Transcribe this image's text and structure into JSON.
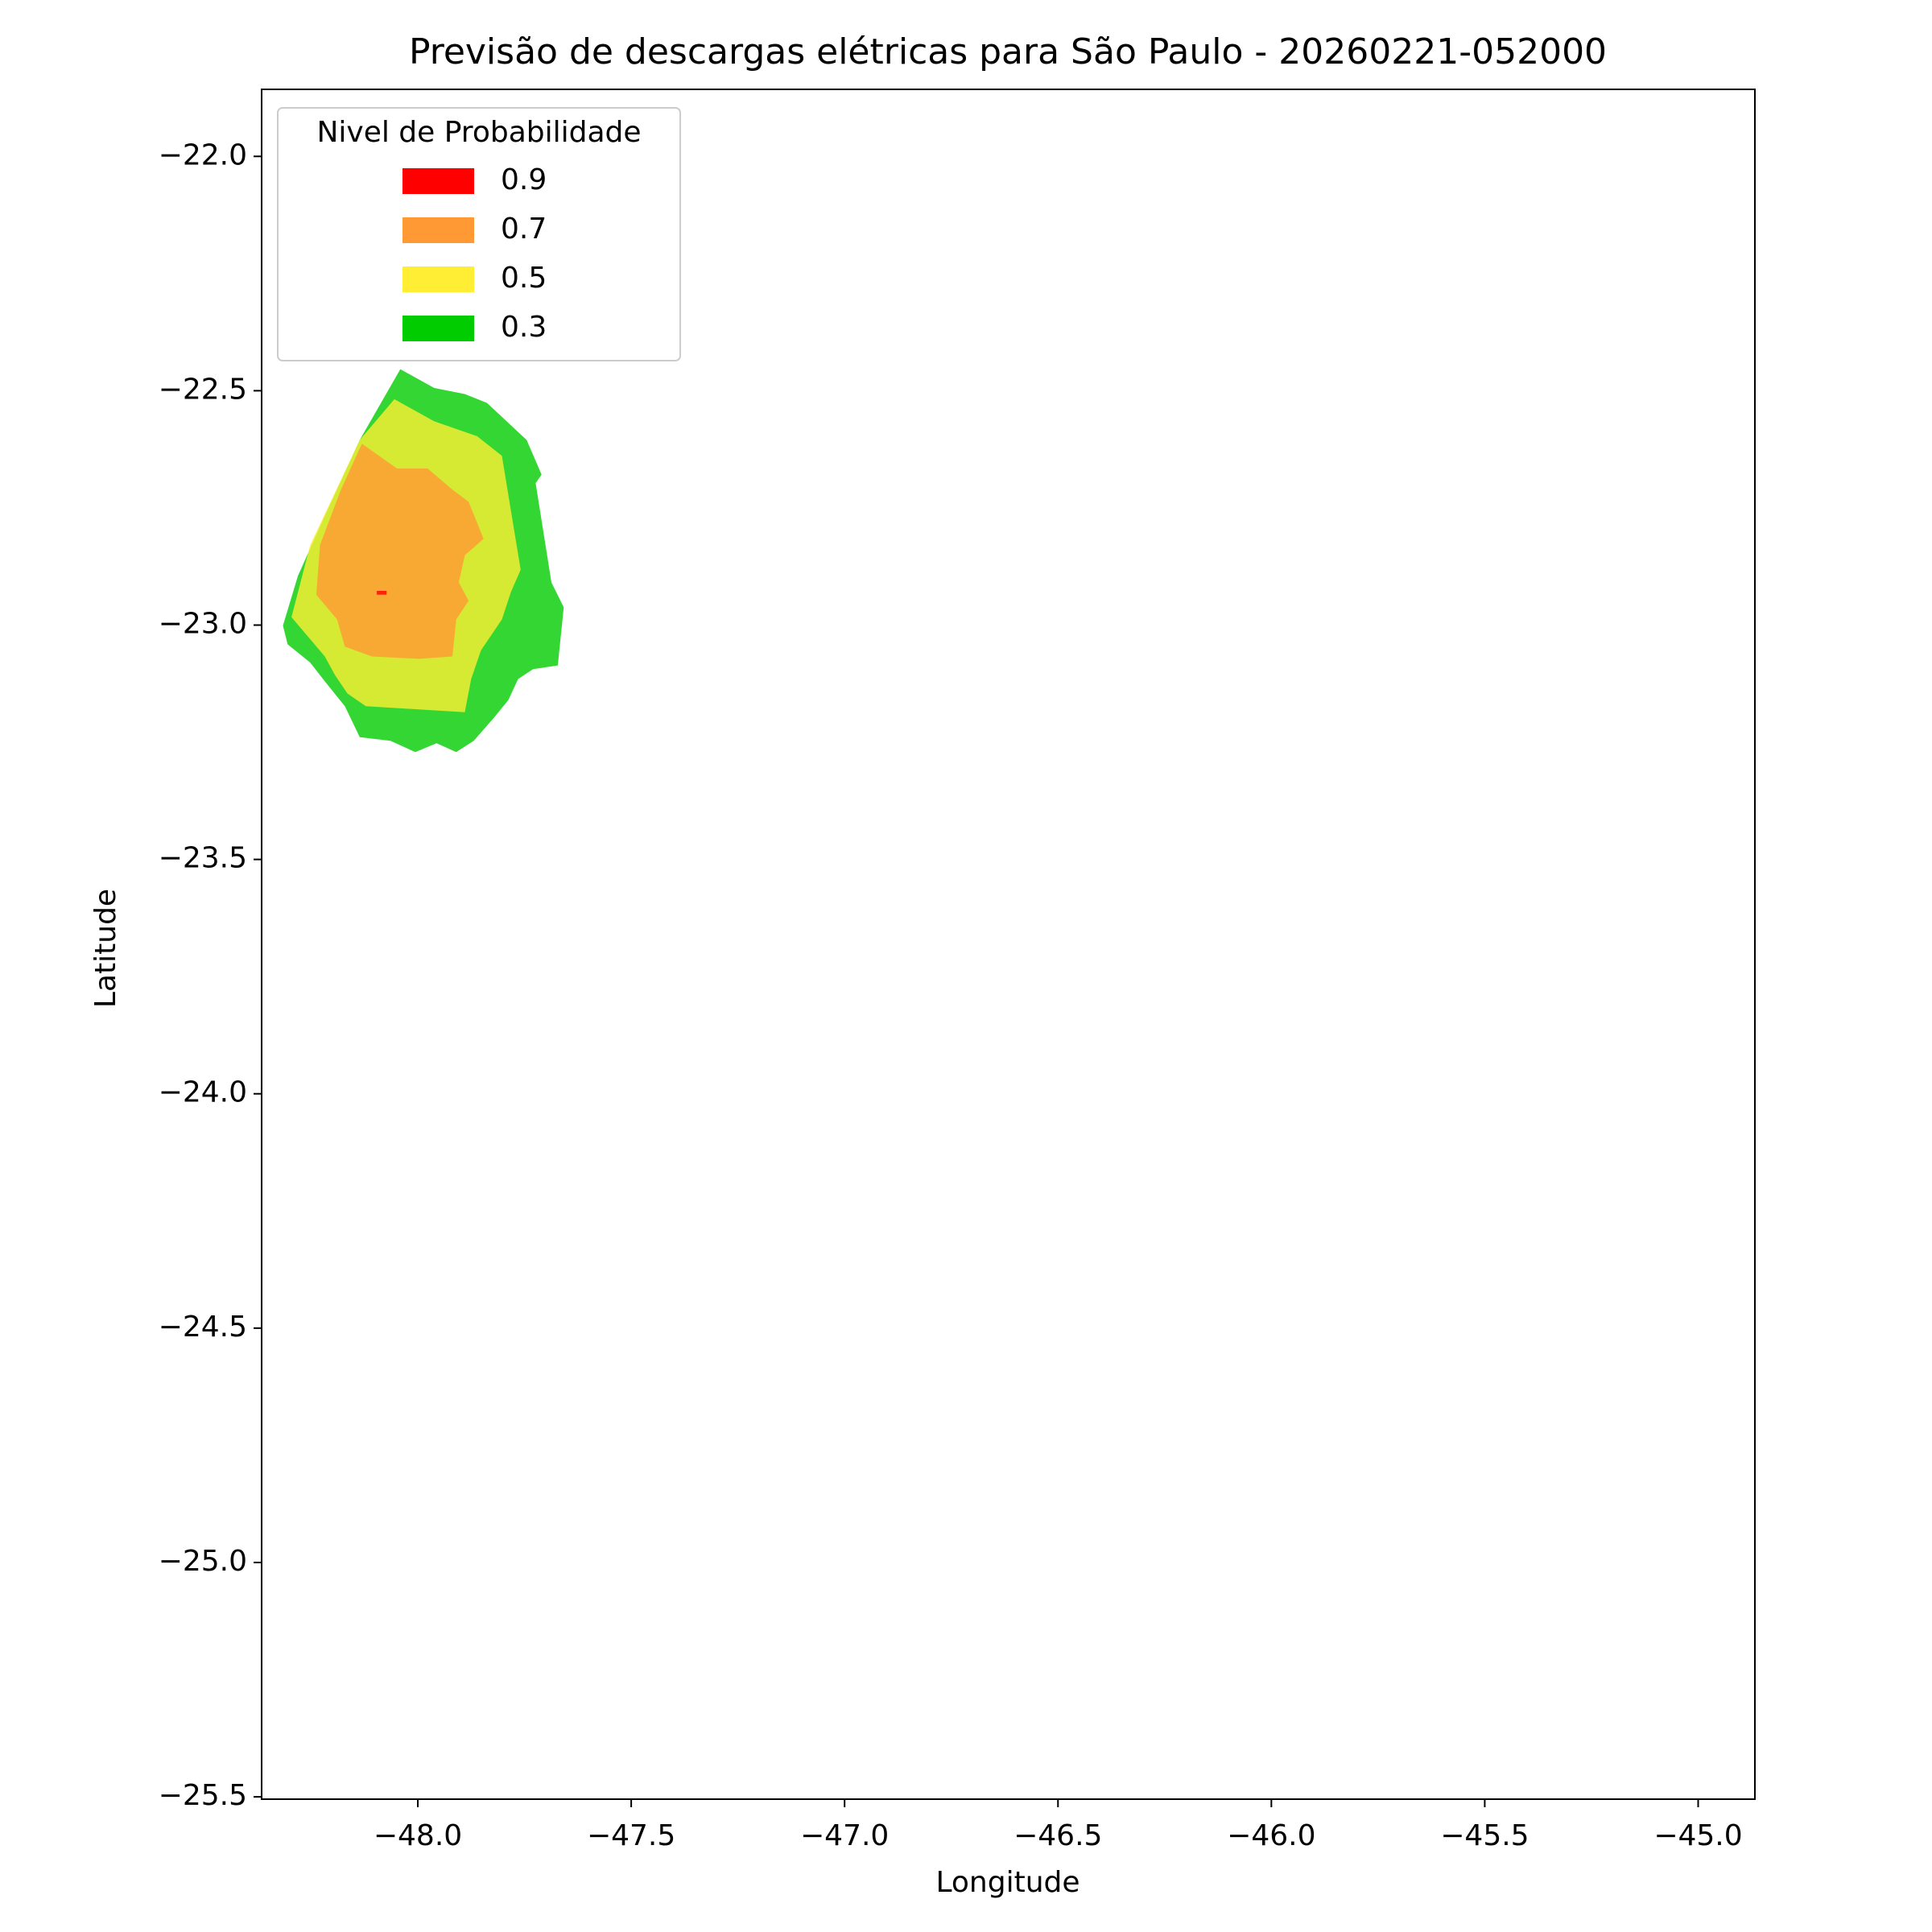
{
  "chart_data": {
    "type": "contour",
    "title": "Previsão de descargas elétricas para São Paulo - 20260221-052000",
    "x_label": "Longitude",
    "y_label": "Latitude",
    "legend_title": "Nivel de Probabilidade",
    "legend": "upper left",
    "alpha": 0.8,
    "xlim": [
      -48.366,
      -44.867
    ],
    "ylim": [
      -25.505,
      -21.857
    ],
    "xticks": [
      {
        "value": -48.0,
        "label": "−48.0"
      },
      {
        "value": -47.5,
        "label": "−47.5"
      },
      {
        "value": -47.0,
        "label": "−47.0"
      },
      {
        "value": -46.5,
        "label": "−46.5"
      },
      {
        "value": -46.0,
        "label": "−46.0"
      },
      {
        "value": -45.5,
        "label": "−45.5"
      },
      {
        "value": -45.0,
        "label": "−45.0"
      }
    ],
    "yticks": [
      {
        "value": -22.0,
        "label": "−22.0"
      },
      {
        "value": -22.5,
        "label": "−22.5"
      },
      {
        "value": -23.0,
        "label": "−23.0"
      },
      {
        "value": -23.5,
        "label": "−23.5"
      },
      {
        "value": -24.0,
        "label": "−24.0"
      },
      {
        "value": -24.5,
        "label": "−24.5"
      },
      {
        "value": -25.0,
        "label": "−25.0"
      },
      {
        "value": -25.5,
        "label": "−25.5"
      }
    ],
    "series": [
      {
        "name": "0.3",
        "color": "#00cc00",
        "lon": [
          -48.041,
          -47.962,
          -47.89,
          -47.838,
          -47.745,
          -47.71,
          -47.724,
          -47.687,
          -47.658,
          -47.672,
          -47.73,
          -47.765,
          -47.788,
          -47.823,
          -47.869,
          -47.91,
          -47.956,
          -48.006,
          -48.064,
          -48.136,
          -48.171,
          -48.218,
          -48.252,
          -48.305,
          -48.316,
          -48.281,
          -48.223,
          -48.136
        ],
        "lat": [
          -22.454,
          -22.494,
          -22.507,
          -22.526,
          -22.605,
          -22.679,
          -22.697,
          -22.909,
          -22.962,
          -23.086,
          -23.094,
          -23.115,
          -23.16,
          -23.199,
          -23.247,
          -23.271,
          -23.252,
          -23.271,
          -23.247,
          -23.239,
          -23.173,
          -23.12,
          -23.08,
          -23.041,
          -23.001,
          -22.895,
          -22.777,
          -22.605
        ]
      },
      {
        "name": "0.5",
        "color": "#ffee33",
        "lon": [
          -48.055,
          -47.962,
          -47.861,
          -47.803,
          -47.759,
          -47.782,
          -47.803,
          -47.852,
          -47.875,
          -47.89,
          -48.122,
          -48.165,
          -48.194,
          -48.218,
          -48.296,
          -48.252,
          -48.136
        ],
        "lat": [
          -22.518,
          -22.565,
          -22.597,
          -22.639,
          -22.882,
          -22.93,
          -22.988,
          -23.054,
          -23.115,
          -23.186,
          -23.173,
          -23.146,
          -23.107,
          -23.067,
          -22.983,
          -22.829,
          -22.605
        ]
      },
      {
        "name": "0.7",
        "color": "#ff9933",
        "lon": [
          -48.131,
          -48.049,
          -47.977,
          -47.919,
          -47.881,
          -47.846,
          -47.89,
          -47.904,
          -47.881,
          -47.91,
          -47.919,
          -47.997,
          -48.107,
          -48.171,
          -48.189,
          -48.238,
          -48.229,
          -48.18
        ],
        "lat": [
          -22.613,
          -22.666,
          -22.666,
          -22.711,
          -22.737,
          -22.816,
          -22.851,
          -22.909,
          -22.948,
          -22.988,
          -23.067,
          -23.072,
          -23.067,
          -23.046,
          -22.988,
          -22.935,
          -22.829,
          -22.711
        ]
      },
      {
        "name": "0.9",
        "color": "#ff0000",
        "lon": [
          -48.096,
          -48.073,
          -48.073,
          -48.096
        ],
        "lat": [
          -22.927,
          -22.927,
          -22.935,
          -22.935
        ]
      }
    ]
  }
}
